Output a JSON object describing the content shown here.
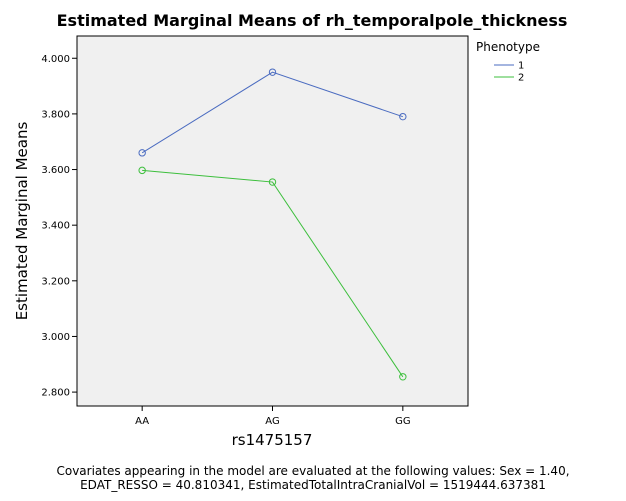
{
  "chart_data": {
    "type": "line",
    "title": "Estimated Marginal Means of rh_temporalpole_thickness",
    "xlabel": "rs1475157",
    "ylabel": "Estimated Marginal Means",
    "categories": [
      "AA",
      "AG",
      "GG"
    ],
    "ylim": [
      2.75,
      4.08
    ],
    "yticks": [
      "2.800",
      "3.000",
      "3.200",
      "3.400",
      "3.600",
      "3.800",
      "4.000"
    ],
    "grid": false,
    "legend": {
      "title": "Phenotype",
      "placement": "right"
    },
    "series": [
      {
        "name": "1",
        "values": [
          3.66,
          3.95,
          3.79
        ],
        "color": "#4a6bc0"
      },
      {
        "name": "2",
        "values": [
          3.597,
          3.555,
          2.855
        ],
        "color": "#3dbf3d"
      }
    ],
    "plot_background": "#f0f0f0",
    "footnote": [
      "Covariates appearing in the model are evaluated at the following values: Sex = 1.40,",
      "EDAT_RESSO = 40.810341, EstimatedTotalIntraCranialVol = 1519444.637381"
    ]
  }
}
